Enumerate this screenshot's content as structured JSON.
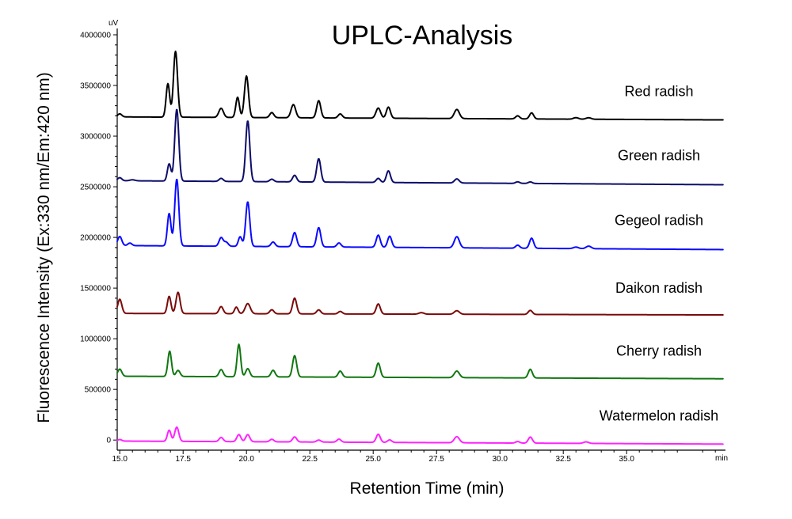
{
  "chart_data": {
    "type": "line",
    "title": "UPLC-Analysis",
    "xlabel": "Retention Time (min)",
    "ylabel": "Fluorescence Intensity (Ex:330 nm/Em:420 nm)",
    "y_unit": "uV",
    "x_unit": "min",
    "xlim": [
      14.9,
      38.9
    ],
    "ylim": [
      -100000,
      4000000
    ],
    "x_ticks": [
      15.0,
      17.5,
      20.0,
      22.5,
      25.0,
      27.5,
      30.0,
      32.5,
      35.0
    ],
    "x_tick_labels": [
      "15.0",
      "17.5",
      "20.0",
      "22.5",
      "25.0",
      "27.5",
      "30.0",
      "32.5",
      "35.0"
    ],
    "y_ticks": [
      0,
      500000,
      1000000,
      1500000,
      2000000,
      2500000,
      3000000,
      3500000,
      4000000
    ],
    "y_tick_labels": [
      "0",
      "500000",
      "1000000",
      "1500000",
      "2000000",
      "2500000",
      "3000000",
      "3500000",
      "4000000"
    ],
    "grid": false,
    "legend": "labels placed to the right of each trace",
    "series": [
      {
        "name": "Red radish",
        "color": "#000000",
        "baseline": [
          3190000,
          3160000
        ],
        "peaks": [
          [
            15.0,
            30000,
            0.08
          ],
          [
            16.9,
            330000,
            0.07
          ],
          [
            17.2,
            650000,
            0.08
          ],
          [
            19.0,
            90000,
            0.09
          ],
          [
            19.65,
            200000,
            0.07
          ],
          [
            20.0,
            410000,
            0.08
          ],
          [
            21.0,
            50000,
            0.08
          ],
          [
            21.85,
            130000,
            0.09
          ],
          [
            22.85,
            170000,
            0.08
          ],
          [
            23.7,
            40000,
            0.08
          ],
          [
            25.2,
            100000,
            0.09
          ],
          [
            25.6,
            110000,
            0.08
          ],
          [
            28.3,
            90000,
            0.1
          ],
          [
            30.7,
            30000,
            0.08
          ],
          [
            31.25,
            60000,
            0.08
          ],
          [
            33.0,
            15000,
            0.1
          ],
          [
            33.5,
            15000,
            0.1
          ]
        ]
      },
      {
        "name": "Green radish",
        "color": "#0d0d6b",
        "baseline": [
          2560000,
          2520000
        ],
        "peaks": [
          [
            15.0,
            30000,
            0.08
          ],
          [
            15.5,
            10000,
            0.1
          ],
          [
            16.95,
            170000,
            0.07
          ],
          [
            17.25,
            710000,
            0.08
          ],
          [
            19.0,
            30000,
            0.08
          ],
          [
            20.05,
            600000,
            0.08
          ],
          [
            21.0,
            25000,
            0.08
          ],
          [
            21.9,
            65000,
            0.08
          ],
          [
            22.85,
            230000,
            0.08
          ],
          [
            25.2,
            40000,
            0.08
          ],
          [
            25.6,
            115000,
            0.08
          ],
          [
            28.3,
            40000,
            0.09
          ],
          [
            30.7,
            15000,
            0.08
          ],
          [
            31.2,
            15000,
            0.08
          ]
        ]
      },
      {
        "name": "Gegeol radish",
        "color": "#0a0aff",
        "baseline": [
          1920000,
          1880000
        ],
        "peaks": [
          [
            15.0,
            90000,
            0.08
          ],
          [
            15.4,
            25000,
            0.08
          ],
          [
            16.95,
            320000,
            0.07
          ],
          [
            17.25,
            660000,
            0.08
          ],
          [
            19.0,
            85000,
            0.08
          ],
          [
            19.2,
            40000,
            0.08
          ],
          [
            19.75,
            95000,
            0.07
          ],
          [
            20.05,
            440000,
            0.08
          ],
          [
            21.05,
            45000,
            0.08
          ],
          [
            21.9,
            140000,
            0.08
          ],
          [
            22.85,
            190000,
            0.08
          ],
          [
            23.65,
            40000,
            0.08
          ],
          [
            25.2,
            120000,
            0.08
          ],
          [
            25.65,
            110000,
            0.08
          ],
          [
            28.3,
            110000,
            0.1
          ],
          [
            30.7,
            30000,
            0.08
          ],
          [
            31.25,
            100000,
            0.08
          ],
          [
            33.0,
            15000,
            0.1
          ],
          [
            33.5,
            25000,
            0.1
          ]
        ]
      },
      {
        "name": "Daikon radish",
        "color": "#7a0a0a",
        "baseline": [
          1250000,
          1235000
        ],
        "peaks": [
          [
            15.0,
            140000,
            0.08
          ],
          [
            16.95,
            170000,
            0.07
          ],
          [
            17.3,
            210000,
            0.08
          ],
          [
            19.0,
            70000,
            0.08
          ],
          [
            19.6,
            65000,
            0.07
          ],
          [
            20.05,
            100000,
            0.1
          ],
          [
            21.0,
            40000,
            0.08
          ],
          [
            21.9,
            155000,
            0.08
          ],
          [
            22.85,
            40000,
            0.08
          ],
          [
            23.7,
            25000,
            0.08
          ],
          [
            25.2,
            100000,
            0.08
          ],
          [
            26.9,
            15000,
            0.1
          ],
          [
            28.3,
            35000,
            0.1
          ],
          [
            31.2,
            40000,
            0.08
          ]
        ]
      },
      {
        "name": "Cherry radish",
        "color": "#117711",
        "baseline": [
          630000,
          605000
        ],
        "peaks": [
          [
            15.0,
            70000,
            0.08
          ],
          [
            16.97,
            250000,
            0.07
          ],
          [
            17.3,
            60000,
            0.08
          ],
          [
            19.0,
            70000,
            0.08
          ],
          [
            19.7,
            320000,
            0.07
          ],
          [
            20.05,
            80000,
            0.08
          ],
          [
            21.05,
            65000,
            0.08
          ],
          [
            21.9,
            210000,
            0.08
          ],
          [
            23.7,
            60000,
            0.08
          ],
          [
            25.2,
            140000,
            0.08
          ],
          [
            28.3,
            65000,
            0.1
          ],
          [
            31.2,
            85000,
            0.08
          ]
        ]
      },
      {
        "name": "Watermelon radish",
        "color": "#ff22ff",
        "baseline": [
          -10000,
          -40000
        ],
        "peaks": [
          [
            15.0,
            15000,
            0.08
          ],
          [
            16.95,
            110000,
            0.07
          ],
          [
            17.25,
            140000,
            0.08
          ],
          [
            19.0,
            40000,
            0.08
          ],
          [
            19.7,
            70000,
            0.08
          ],
          [
            20.05,
            70000,
            0.08
          ],
          [
            21.0,
            25000,
            0.08
          ],
          [
            21.9,
            50000,
            0.08
          ],
          [
            22.85,
            20000,
            0.08
          ],
          [
            23.65,
            30000,
            0.08
          ],
          [
            25.2,
            80000,
            0.08
          ],
          [
            25.65,
            25000,
            0.08
          ],
          [
            28.3,
            60000,
            0.1
          ],
          [
            30.7,
            15000,
            0.08
          ],
          [
            31.2,
            60000,
            0.08
          ],
          [
            33.4,
            15000,
            0.1
          ]
        ]
      }
    ]
  }
}
